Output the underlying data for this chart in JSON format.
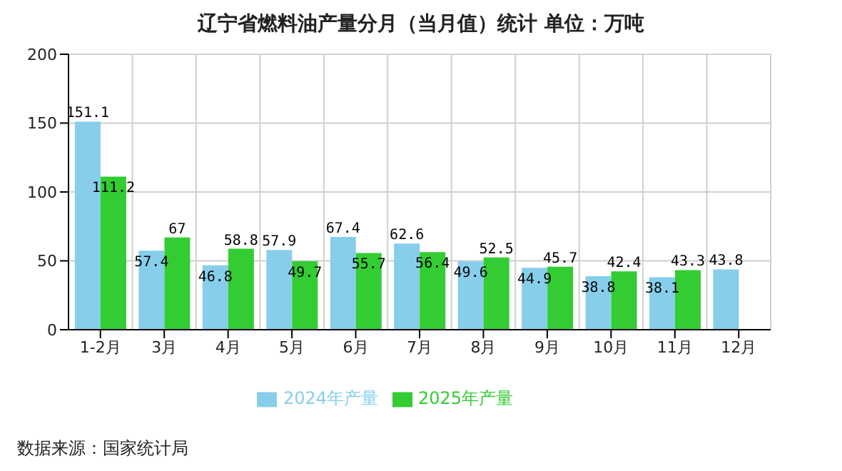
{
  "chart_data": {
    "type": "bar",
    "title": "辽宁省燃料油产量分月（当月值）统计 单位：万吨",
    "categories": [
      "1-2月",
      "3月",
      "4月",
      "5月",
      "6月",
      "7月",
      "8月",
      "9月",
      "10月",
      "11月",
      "12月"
    ],
    "series": [
      {
        "name": "2024年产量",
        "color": "#87ceeb",
        "values": [
          151.1,
          57.4,
          46.8,
          57.9,
          67.4,
          62.6,
          49.6,
          44.9,
          38.8,
          38.1,
          43.8
        ]
      },
      {
        "name": "2025年产量",
        "color": "#33cc33",
        "values": [
          111.2,
          67,
          58.8,
          49.7,
          55.7,
          56.4,
          52.5,
          45.7,
          42.4,
          43.3,
          null
        ]
      }
    ],
    "ylim": [
      0,
      200
    ],
    "yticks": [
      0,
      50,
      100,
      150,
      200
    ],
    "grid": true,
    "legend": "bottom",
    "data_labels": true,
    "annotations": [
      "数据来源：国家统计局"
    ]
  }
}
